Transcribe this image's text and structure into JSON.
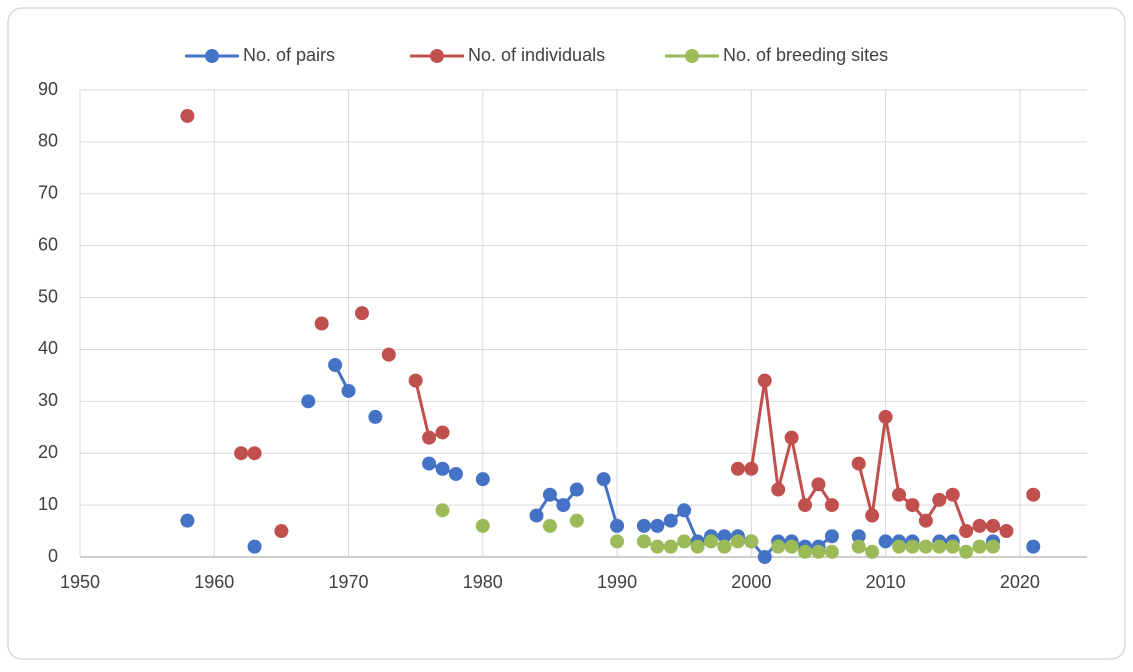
{
  "chart_data": {
    "type": "line",
    "x": [
      1958,
      1959,
      1960,
      1961,
      1962,
      1963,
      1964,
      1965,
      1966,
      1967,
      1968,
      1969,
      1970,
      1971,
      1972,
      1973,
      1974,
      1975,
      1976,
      1977,
      1978,
      1979,
      1980,
      1981,
      1982,
      1983,
      1984,
      1985,
      1986,
      1987,
      1988,
      1989,
      1990,
      1991,
      1992,
      1993,
      1994,
      1995,
      1996,
      1997,
      1998,
      1999,
      2000,
      2001,
      2002,
      2003,
      2004,
      2005,
      2006,
      2007,
      2008,
      2009,
      2010,
      2011,
      2012,
      2013,
      2014,
      2015,
      2016,
      2017,
      2018,
      2019,
      2020,
      2021
    ],
    "series": [
      {
        "name": "No. of pairs",
        "color": "#4472c4",
        "values": [
          7,
          null,
          null,
          null,
          null,
          2,
          null,
          null,
          null,
          30,
          null,
          37,
          32,
          null,
          27,
          null,
          null,
          null,
          18,
          17,
          16,
          null,
          15,
          null,
          null,
          null,
          8,
          12,
          10,
          13,
          null,
          15,
          6,
          null,
          6,
          6,
          7,
          9,
          3,
          4,
          4,
          4,
          3,
          0,
          3,
          3,
          2,
          2,
          4,
          null,
          4,
          null,
          3,
          3,
          3,
          null,
          3,
          3,
          null,
          null,
          3,
          null,
          null,
          2
        ]
      },
      {
        "name": "No. of individuals",
        "color": "#c0504d",
        "values": [
          85,
          null,
          null,
          null,
          20,
          20,
          null,
          5,
          null,
          null,
          45,
          null,
          null,
          47,
          null,
          39,
          null,
          34,
          23,
          24,
          null,
          null,
          null,
          null,
          null,
          null,
          null,
          null,
          null,
          null,
          null,
          null,
          null,
          null,
          null,
          null,
          null,
          null,
          null,
          null,
          null,
          17,
          17,
          34,
          13,
          23,
          10,
          14,
          10,
          null,
          18,
          8,
          27,
          12,
          10,
          7,
          11,
          12,
          5,
          6,
          6,
          5,
          null,
          12
        ]
      },
      {
        "name": "No. of breeding sites",
        "color": "#9bbb59",
        "values": [
          null,
          null,
          null,
          null,
          null,
          null,
          null,
          null,
          null,
          null,
          null,
          null,
          null,
          null,
          null,
          null,
          null,
          null,
          null,
          9,
          null,
          null,
          6,
          null,
          null,
          null,
          null,
          6,
          null,
          7,
          null,
          null,
          3,
          null,
          3,
          2,
          2,
          3,
          2,
          3,
          2,
          3,
          3,
          null,
          2,
          2,
          1,
          1,
          1,
          null,
          2,
          1,
          null,
          2,
          2,
          2,
          2,
          2,
          1,
          2,
          2,
          null,
          null,
          null
        ]
      }
    ],
    "xlim": [
      1950,
      2025
    ],
    "xticks": [
      1950,
      1960,
      1970,
      1980,
      1990,
      2000,
      2010,
      2020
    ],
    "ylim": [
      0,
      90
    ],
    "yticks": [
      0,
      10,
      20,
      30,
      40,
      50,
      60,
      70,
      80,
      90
    ],
    "grid": true,
    "legend": "top"
  }
}
